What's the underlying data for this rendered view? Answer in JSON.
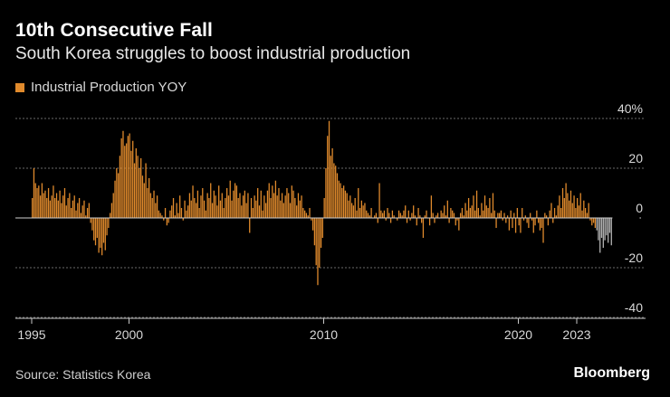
{
  "header": {
    "title": "10th Consecutive Fall",
    "subtitle": "South Korea struggles to boost industrial production"
  },
  "footer": {
    "source": "Source: Statistics Korea",
    "brand": "Bloomberg"
  },
  "colors": {
    "background": "#000000",
    "bar": "#e08a2c",
    "highlight": "#b4b4b4",
    "grid": "#6a6a6a",
    "axis": "#c8c8c8"
  },
  "chart_data": {
    "type": "bar",
    "title": "10th Consecutive Fall",
    "subtitle": "South Korea struggles to boost industrial production",
    "legend": [
      "Industrial Production YOY"
    ],
    "legend_position": "top-left",
    "y_ticks": [
      "40%",
      "20",
      "0",
      "-20",
      "-40"
    ],
    "y_tick_values": [
      40,
      20,
      0,
      -20,
      -40
    ],
    "ylim": [
      -40,
      40
    ],
    "x_ticks": [
      "1995",
      "2000",
      "2010",
      "2020",
      "2023"
    ],
    "x_tick_years": [
      1995,
      2000,
      2010,
      2020,
      2023
    ],
    "xlim": [
      1995,
      2026
    ],
    "grid": true,
    "frequency": "monthly",
    "start": "1995-01",
    "highlight_last_n": 10,
    "series": [
      {
        "name": "Industrial Production YOY",
        "values": [
          8,
          20,
          14,
          12,
          13,
          9,
          14,
          10,
          11,
          8,
          12,
          7,
          9,
          13,
          8,
          10,
          7,
          11,
          6,
          9,
          12,
          5,
          8,
          10,
          4,
          7,
          9,
          3,
          6,
          8,
          2,
          5,
          7,
          1,
          4,
          6,
          -2,
          -5,
          -9,
          -11,
          -8,
          -14,
          -12,
          -15,
          -10,
          -13,
          -7,
          -4,
          2,
          6,
          10,
          15,
          20,
          18,
          25,
          32,
          35,
          29,
          30,
          33,
          34,
          27,
          31,
          22,
          28,
          25,
          20,
          24,
          17,
          14,
          22,
          12,
          16,
          10,
          8,
          11,
          6,
          9,
          3,
          2,
          1,
          -1,
          4,
          -3,
          -2,
          3,
          5,
          8,
          1,
          6,
          2,
          9,
          4,
          -1,
          7,
          3,
          5,
          10,
          7,
          13,
          8,
          6,
          11,
          4,
          9,
          12,
          7,
          3,
          10,
          8,
          14,
          6,
          11,
          9,
          5,
          13,
          7,
          10,
          4,
          8,
          12,
          9,
          15,
          7,
          11,
          14,
          13,
          8,
          10,
          5,
          9,
          11,
          6,
          10,
          -6,
          8,
          4,
          9,
          7,
          12,
          5,
          11,
          3,
          9,
          6,
          11,
          14,
          8,
          13,
          10,
          15,
          9,
          12,
          7,
          10,
          6,
          9,
          12,
          10,
          6,
          13,
          11,
          8,
          5,
          10,
          7,
          9,
          4,
          3,
          2,
          1,
          4,
          -1,
          -5,
          -11,
          -19,
          -27,
          -20,
          -12,
          -8,
          8,
          20,
          33,
          39,
          25,
          28,
          22,
          21,
          18,
          15,
          14,
          12,
          13,
          11,
          10,
          7,
          9,
          6,
          5,
          8,
          3,
          12,
          4,
          7,
          5,
          6,
          3,
          2,
          1,
          4,
          0,
          1,
          2,
          -2,
          14,
          3,
          2,
          3,
          -1,
          4,
          2,
          -2,
          3,
          1,
          0,
          -1,
          3,
          2,
          1,
          3,
          5,
          -2,
          3,
          -1,
          2,
          5,
          1,
          -3,
          4,
          1,
          -2,
          -8,
          1,
          3,
          0,
          -3,
          9,
          2,
          -2,
          1,
          2,
          0,
          3,
          2,
          5,
          1,
          7,
          -2,
          4,
          3,
          2,
          -3,
          -1,
          -5,
          2,
          4,
          1,
          6,
          3,
          8,
          4,
          5,
          9,
          3,
          11,
          4,
          1,
          6,
          3,
          9,
          5,
          4,
          8,
          2,
          10,
          3,
          -4,
          2,
          2,
          3,
          -1,
          2,
          -2,
          1,
          -5,
          3,
          -4,
          2,
          -6,
          4,
          -3,
          -6,
          4,
          -1,
          1,
          -2,
          -4,
          2,
          -1,
          -6,
          -3,
          3,
          -2,
          -5,
          -4,
          -10,
          2,
          1,
          -3,
          3,
          6,
          -2,
          4,
          1,
          5,
          9,
          4,
          12,
          8,
          14,
          10,
          7,
          11,
          6,
          9,
          4,
          8,
          5,
          10,
          3,
          7,
          4,
          2,
          6,
          -1,
          -3,
          -2,
          -4,
          -5,
          -9,
          -14,
          -8,
          -12,
          -9,
          -7,
          -10,
          -6,
          -11
        ]
      }
    ]
  }
}
